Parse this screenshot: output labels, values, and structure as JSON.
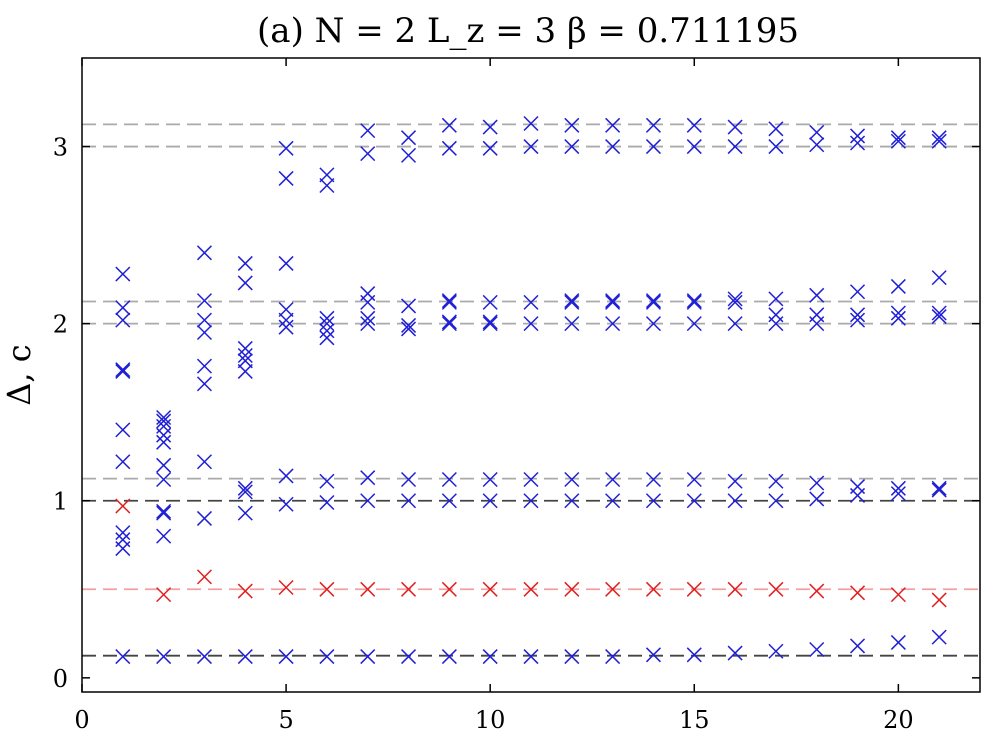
{
  "chart_data": {
    "type": "scatter",
    "title": "(a)  N = 2  L_z = 3  β = 0.711195",
    "xlabel": "",
    "ylabel": "Δ, c",
    "xlim": [
      0,
      22
    ],
    "ylim": [
      -0.08,
      3.5
    ],
    "xticks": [
      0,
      5,
      10,
      15,
      20
    ],
    "yticks": [
      0,
      1,
      2,
      3
    ],
    "xtick_labels": [
      "0",
      "5",
      "10",
      "15",
      "20"
    ],
    "ytick_labels": [
      "0",
      "1",
      "2",
      "3"
    ],
    "grid": false,
    "legend": "none",
    "colors": {
      "primary": "#1f1fd6",
      "central_charge": "#e02020",
      "ref_dark": "#444444",
      "ref_gray": "#aaaaaa",
      "ref_red": "#f0a0a0"
    },
    "reference_lines": [
      {
        "y": 0.125,
        "color": "#444444"
      },
      {
        "y": 0.5,
        "color": "#f0a0a0"
      },
      {
        "y": 1.0,
        "color": "#444444"
      },
      {
        "y": 1.125,
        "color": "#aaaaaa"
      },
      {
        "y": 2.0,
        "color": "#aaaaaa"
      },
      {
        "y": 2.125,
        "color": "#aaaaaa"
      },
      {
        "y": 3.0,
        "color": "#aaaaaa"
      },
      {
        "y": 3.125,
        "color": "#aaaaaa"
      }
    ],
    "series": [
      {
        "color": "#1f1fd6",
        "points": [
          [
            1,
            0.12
          ],
          [
            1,
            0.73
          ],
          [
            1,
            0.78
          ],
          [
            1,
            0.82
          ],
          [
            1,
            1.22
          ],
          [
            1,
            1.4
          ],
          [
            1,
            1.73
          ],
          [
            1,
            1.74
          ],
          [
            1,
            2.02
          ],
          [
            1,
            2.09
          ],
          [
            1,
            2.28
          ],
          [
            2,
            0.12
          ],
          [
            2,
            0.8
          ],
          [
            2,
            0.93
          ],
          [
            2,
            0.94
          ],
          [
            2,
            1.12
          ],
          [
            2,
            1.2
          ],
          [
            2,
            1.33
          ],
          [
            2,
            1.37
          ],
          [
            2,
            1.42
          ],
          [
            2,
            1.45
          ],
          [
            2,
            1.47
          ],
          [
            3,
            0.12
          ],
          [
            3,
            0.9
          ],
          [
            3,
            1.22
          ],
          [
            3,
            1.66
          ],
          [
            3,
            1.76
          ],
          [
            3,
            1.95
          ],
          [
            3,
            2.02
          ],
          [
            3,
            2.13
          ],
          [
            3,
            2.4
          ],
          [
            4,
            0.12
          ],
          [
            4,
            0.93
          ],
          [
            4,
            1.05
          ],
          [
            4,
            1.07
          ],
          [
            4,
            1.73
          ],
          [
            4,
            1.79
          ],
          [
            4,
            1.82
          ],
          [
            4,
            1.86
          ],
          [
            4,
            2.23
          ],
          [
            4,
            2.34
          ],
          [
            5,
            0.12
          ],
          [
            5,
            0.98
          ],
          [
            5,
            1.14
          ],
          [
            5,
            1.98
          ],
          [
            5,
            2.02
          ],
          [
            5,
            2.08
          ],
          [
            5,
            2.34
          ],
          [
            5,
            2.82
          ],
          [
            5,
            2.99
          ],
          [
            6,
            0.12
          ],
          [
            6,
            0.99
          ],
          [
            6,
            1.11
          ],
          [
            6,
            1.92
          ],
          [
            6,
            1.96
          ],
          [
            6,
            2.0
          ],
          [
            6,
            2.03
          ],
          [
            6,
            2.78
          ],
          [
            6,
            2.84
          ],
          [
            7,
            0.12
          ],
          [
            7,
            1.0
          ],
          [
            7,
            1.13
          ],
          [
            7,
            2.0
          ],
          [
            7,
            2.03
          ],
          [
            7,
            2.12
          ],
          [
            7,
            2.17
          ],
          [
            7,
            2.96
          ],
          [
            7,
            3.09
          ],
          [
            8,
            0.12
          ],
          [
            8,
            1.0
          ],
          [
            8,
            1.12
          ],
          [
            8,
            1.97
          ],
          [
            8,
            1.99
          ],
          [
            8,
            2.1
          ],
          [
            8,
            2.95
          ],
          [
            8,
            3.05
          ],
          [
            9,
            0.12
          ],
          [
            9,
            1.0
          ],
          [
            9,
            1.12
          ],
          [
            9,
            2.0
          ],
          [
            9,
            2.01
          ],
          [
            9,
            2.12
          ],
          [
            9,
            2.13
          ],
          [
            9,
            2.99
          ],
          [
            9,
            3.12
          ],
          [
            10,
            0.12
          ],
          [
            10,
            1.0
          ],
          [
            10,
            1.12
          ],
          [
            10,
            2.0
          ],
          [
            10,
            2.01
          ],
          [
            10,
            2.12
          ],
          [
            10,
            2.99
          ],
          [
            10,
            3.11
          ],
          [
            11,
            0.12
          ],
          [
            11,
            1.0
          ],
          [
            11,
            1.12
          ],
          [
            11,
            2.0
          ],
          [
            11,
            2.12
          ],
          [
            11,
            3.0
          ],
          [
            11,
            3.13
          ],
          [
            12,
            0.12
          ],
          [
            12,
            1.0
          ],
          [
            12,
            1.12
          ],
          [
            12,
            2.0
          ],
          [
            12,
            2.12
          ],
          [
            12,
            2.13
          ],
          [
            12,
            3.0
          ],
          [
            12,
            3.12
          ],
          [
            13,
            0.12
          ],
          [
            13,
            1.0
          ],
          [
            13,
            1.12
          ],
          [
            13,
            2.0
          ],
          [
            13,
            2.12
          ],
          [
            13,
            2.13
          ],
          [
            13,
            3.0
          ],
          [
            13,
            3.12
          ],
          [
            14,
            0.13
          ],
          [
            14,
            1.0
          ],
          [
            14,
            1.12
          ],
          [
            14,
            2.0
          ],
          [
            14,
            2.12
          ],
          [
            14,
            2.13
          ],
          [
            14,
            3.0
          ],
          [
            14,
            3.12
          ],
          [
            15,
            0.13
          ],
          [
            15,
            1.0
          ],
          [
            15,
            1.12
          ],
          [
            15,
            2.0
          ],
          [
            15,
            2.12
          ],
          [
            15,
            2.13
          ],
          [
            15,
            3.0
          ],
          [
            15,
            3.12
          ],
          [
            16,
            0.14
          ],
          [
            16,
            1.0
          ],
          [
            16,
            1.11
          ],
          [
            16,
            2.0
          ],
          [
            16,
            2.12
          ],
          [
            16,
            2.14
          ],
          [
            16,
            3.0
          ],
          [
            16,
            3.11
          ],
          [
            17,
            0.15
          ],
          [
            17,
            1.0
          ],
          [
            17,
            1.11
          ],
          [
            17,
            2.0
          ],
          [
            17,
            2.05
          ],
          [
            17,
            2.14
          ],
          [
            17,
            3.0
          ],
          [
            17,
            3.1
          ],
          [
            18,
            0.16
          ],
          [
            18,
            1.01
          ],
          [
            18,
            1.1
          ],
          [
            18,
            2.0
          ],
          [
            18,
            2.05
          ],
          [
            18,
            2.16
          ],
          [
            18,
            3.01
          ],
          [
            18,
            3.08
          ],
          [
            19,
            0.18
          ],
          [
            19,
            1.03
          ],
          [
            19,
            1.08
          ],
          [
            19,
            2.02
          ],
          [
            19,
            2.05
          ],
          [
            19,
            2.18
          ],
          [
            19,
            3.02
          ],
          [
            19,
            3.06
          ],
          [
            20,
            0.2
          ],
          [
            20,
            1.04
          ],
          [
            20,
            1.07
          ],
          [
            20,
            2.03
          ],
          [
            20,
            2.06
          ],
          [
            20,
            2.21
          ],
          [
            20,
            3.03
          ],
          [
            20,
            3.05
          ],
          [
            21,
            0.23
          ],
          [
            21,
            1.06
          ],
          [
            21,
            1.07
          ],
          [
            21,
            2.04
          ],
          [
            21,
            2.06
          ],
          [
            21,
            2.26
          ],
          [
            21,
            3.03
          ],
          [
            21,
            3.05
          ]
        ]
      },
      {
        "color": "#e02020",
        "points": [
          [
            1,
            0.97
          ],
          [
            2,
            0.47
          ],
          [
            3,
            0.57
          ],
          [
            4,
            0.49
          ],
          [
            5,
            0.51
          ],
          [
            6,
            0.5
          ],
          [
            7,
            0.5
          ],
          [
            8,
            0.5
          ],
          [
            9,
            0.5
          ],
          [
            10,
            0.5
          ],
          [
            11,
            0.5
          ],
          [
            12,
            0.5
          ],
          [
            13,
            0.5
          ],
          [
            14,
            0.5
          ],
          [
            15,
            0.5
          ],
          [
            16,
            0.5
          ],
          [
            17,
            0.5
          ],
          [
            18,
            0.49
          ],
          [
            19,
            0.48
          ],
          [
            20,
            0.47
          ],
          [
            21,
            0.44
          ]
        ]
      }
    ]
  }
}
